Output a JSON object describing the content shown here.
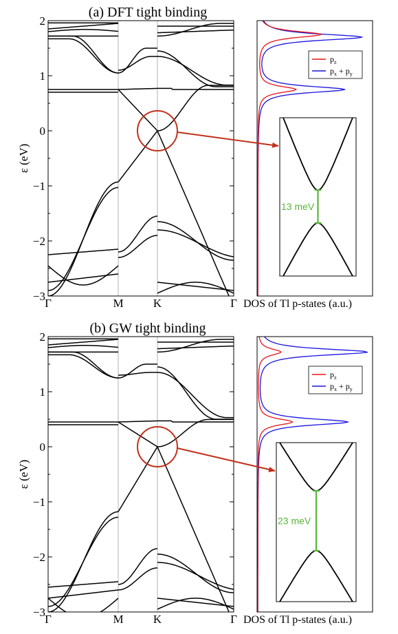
{
  "colors": {
    "band": "#000000",
    "kline": "#b0b0b0",
    "pz": "#e8141a",
    "pxy": "#1a14e0",
    "circle": "#c1301b",
    "gap": "#5ab53c"
  },
  "chart_data": [
    {
      "type": "line",
      "title": "(a) DFT tight binding",
      "ylabel": "ε (eV)",
      "ylim": [
        -3,
        2
      ],
      "y_ticks": [
        "2",
        "1",
        "0",
        "−1",
        "−2",
        "−3"
      ],
      "x_ticks": [
        "Γ",
        "M",
        "K",
        "Γ"
      ],
      "dos_xlabel": "DOS of Tl p-states (a.u.)",
      "legend": {
        "pz": "p",
        "pz_sub": "z",
        "pxy_a": "p",
        "pxy_sub1": "x",
        "plus": " + p",
        "pxy_sub2": "y"
      },
      "inset_gap_label": "13 meV",
      "gap_meV": 13,
      "flat_band_eV": 0.75,
      "upper_band_eV": 1.72,
      "m_point_eV": [
        1.05,
        -0.93,
        -2.2
      ],
      "dos_peaks": {
        "pz": [
          {
            "e": 0.75,
            "h": 0.33
          },
          {
            "e": 1.75,
            "h": 0.55
          }
        ],
        "pxy": [
          {
            "e": 0.75,
            "h": 0.75
          },
          {
            "e": 1.7,
            "h": 0.9
          }
        ]
      }
    },
    {
      "type": "line",
      "title": "(b) GW tight binding",
      "ylabel": "ε (eV)",
      "ylim": [
        -3,
        2
      ],
      "y_ticks": [
        "2",
        "1",
        "0",
        "−1",
        "−2",
        "−3"
      ],
      "x_ticks": [
        "Γ",
        "M",
        "K",
        "Γ"
      ],
      "dos_xlabel": "DOS of Tl p-states (a.u.)",
      "legend": {
        "pz": "p",
        "pz_sub": "z",
        "pxy_a": "p",
        "pxy_sub1": "x",
        "plus": " + p",
        "pxy_sub2": "y"
      },
      "inset_gap_label": "23 meV",
      "gap_meV": 23,
      "flat_band_eV": 0.45,
      "upper_band_eV": 1.72,
      "m_point_eV": [
        1.25,
        -1.18,
        -2.5
      ],
      "dos_peaks": {
        "pz": [
          {
            "e": 0.45,
            "h": 0.3
          },
          {
            "e": 1.72,
            "h": 0.2
          }
        ],
        "pxy": [
          {
            "e": 0.45,
            "h": 0.78
          },
          {
            "e": 1.72,
            "h": 0.95
          }
        ]
      }
    }
  ]
}
